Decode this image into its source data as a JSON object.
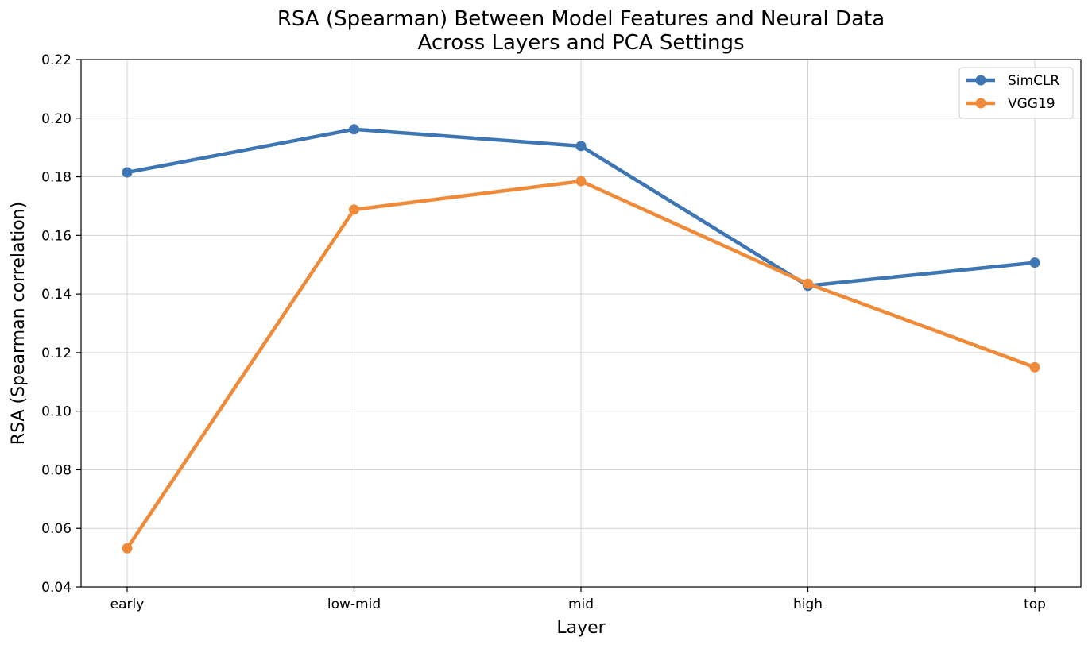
{
  "chart_data": {
    "type": "line",
    "title": [
      "RSA (Spearman) Between Model Features and Neural Data",
      "Across Layers and PCA Settings"
    ],
    "xlabel": "Layer",
    "ylabel": "RSA (Spearman correlation)",
    "categories": [
      "early",
      "low-mid",
      "mid",
      "high",
      "top"
    ],
    "ylim": [
      0.04,
      0.22
    ],
    "yticks": [
      "0.04",
      "0.06",
      "0.08",
      "0.10",
      "0.12",
      "0.14",
      "0.16",
      "0.18",
      "0.20",
      "0.22"
    ],
    "grid": true,
    "legend_position": "top-right",
    "series": [
      {
        "name": "SimCLR",
        "color": "#3e76b4",
        "values": [
          0.1815,
          0.1962,
          0.1905,
          0.1428,
          0.1507
        ]
      },
      {
        "name": "VGG19",
        "color": "#ef8a38",
        "values": [
          0.0532,
          0.1688,
          0.1785,
          0.1435,
          0.115
        ]
      }
    ]
  }
}
